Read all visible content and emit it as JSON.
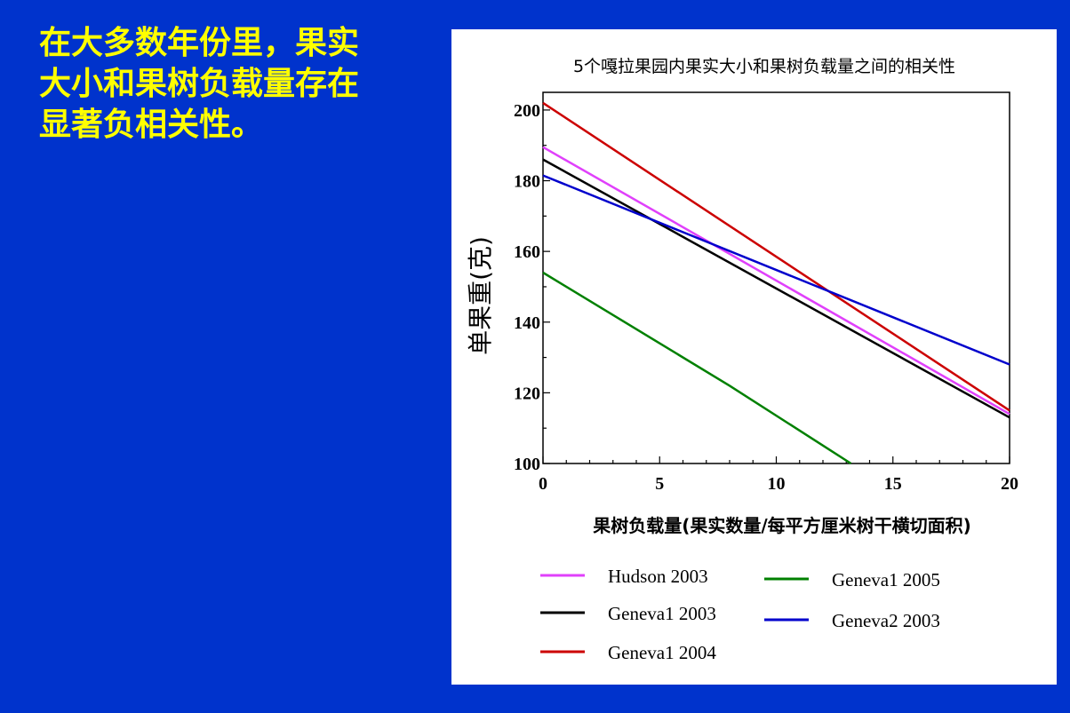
{
  "slide": {
    "text_lines": [
      "在大多数年份里，果实",
      "大小和果树负载量存在",
      "显著负相关性。"
    ],
    "text_color": "#FFFF00",
    "background": "#0033CC"
  },
  "chart_data": {
    "type": "line",
    "title": "5个嘎拉果园内果实大小和果树负载量之间的相关性",
    "xlabel": "果树负载量(果实数量/每平方厘米树干横切面积)",
    "ylabel": "单果重(克)",
    "xlim": [
      0,
      20
    ],
    "ylim": [
      100,
      205
    ],
    "x_ticks": [
      0,
      5,
      10,
      15,
      20
    ],
    "y_ticks": [
      100,
      120,
      140,
      160,
      180,
      200
    ],
    "grid": false,
    "legend_position": "bottom",
    "series": [
      {
        "name": "Hudson 2003",
        "color": "#E040FB",
        "x": [
          0,
          20
        ],
        "y": [
          189.5,
          114
        ]
      },
      {
        "name": "Geneva1 2003",
        "color": "#000000",
        "x": [
          0,
          20
        ],
        "y": [
          186,
          113
        ]
      },
      {
        "name": "Geneva1 2004",
        "color": "#CC0000",
        "x": [
          0,
          20
        ],
        "y": [
          202,
          115
        ]
      },
      {
        "name": "Geneva1 2005",
        "color": "#008000",
        "x": [
          0,
          4,
          8,
          13.2
        ],
        "y": [
          154,
          138,
          122,
          100
        ]
      },
      {
        "name": "Geneva2 2003",
        "color": "#0000CC",
        "x": [
          0,
          20
        ],
        "y": [
          181.5,
          128
        ]
      }
    ]
  }
}
